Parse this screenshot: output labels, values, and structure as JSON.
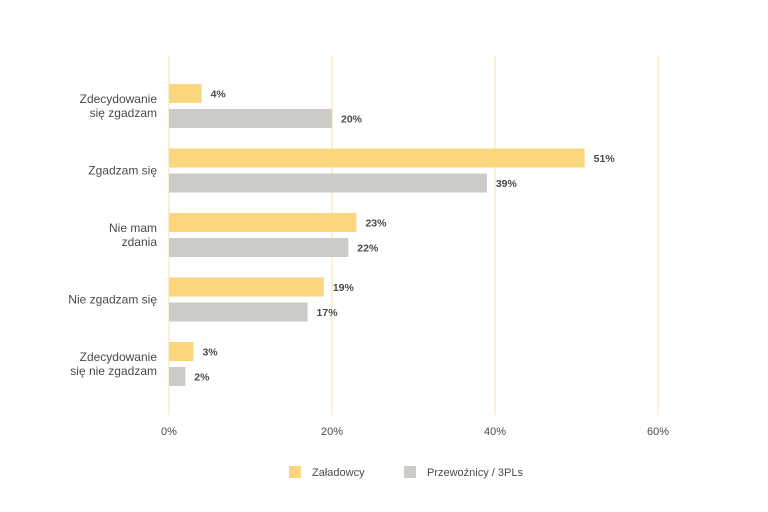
{
  "chart_data": {
    "type": "bar",
    "orientation": "horizontal",
    "categories": [
      [
        "Zdecydowanie",
        "się zgadzam"
      ],
      [
        "Zgadzam się"
      ],
      [
        "Nie mam",
        "zdania"
      ],
      [
        "Nie zgadzam się"
      ],
      [
        "Zdecydowanie",
        "się nie zgadzam"
      ]
    ],
    "series": [
      {
        "name": "Załadowcy",
        "values": [
          4,
          51,
          23,
          19,
          3
        ],
        "color": "#fad67f"
      },
      {
        "name": "Przewoźnicy / 3PLs",
        "values": [
          20,
          39,
          22,
          17,
          2
        ],
        "color": "#cccbc8"
      }
    ],
    "value_suffix": "%",
    "xlim": [
      0,
      60
    ],
    "x_ticks": [
      0,
      20,
      40,
      60
    ],
    "x_tick_labels": [
      "0%",
      "20%",
      "40%",
      "60%"
    ],
    "grid": true,
    "grid_color": "#f7e3a6",
    "legend_position": "bottom-center"
  }
}
